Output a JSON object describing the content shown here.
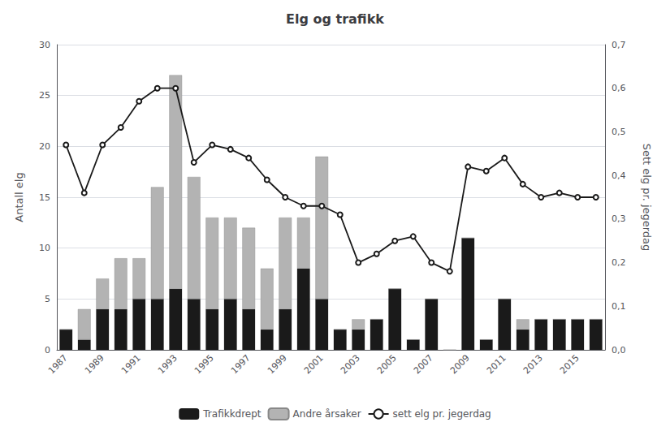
{
  "chart_data": {
    "type": "bar",
    "title": "Elg og trafikk",
    "ylabel": "Antall elg",
    "y2label": "Sett elg pr. jegerdag",
    "categories": [
      "1987",
      null,
      "1989",
      null,
      "1991",
      null,
      "1993",
      null,
      "1995",
      null,
      "1997",
      null,
      "1999",
      null,
      "2001",
      null,
      "2003",
      null,
      "2005",
      null,
      "2007",
      null,
      "2009",
      null,
      "2011",
      null,
      "2013",
      null,
      "2015",
      null
    ],
    "series": [
      {
        "name": "Trafikkdrept",
        "type": "bar",
        "color": "#1a1a1a",
        "values": [
          2,
          1,
          4,
          4,
          5,
          5,
          6,
          5,
          4,
          5,
          4,
          2,
          4,
          8,
          5,
          2,
          2,
          3,
          6,
          1,
          5,
          0,
          11,
          1,
          5,
          2,
          3,
          3,
          3,
          3
        ]
      },
      {
        "name": "Andre årsaker",
        "type": "bar",
        "color": "#b3b3b3",
        "values": [
          0,
          3,
          3,
          5,
          4,
          11,
          21,
          12,
          9,
          8,
          8,
          6,
          9,
          5,
          14,
          0,
          1,
          0,
          0,
          0,
          0,
          0,
          0,
          0,
          0,
          1,
          0,
          0,
          0,
          0
        ]
      },
      {
        "name": "sett elg pr. jegerdag",
        "type": "line",
        "axis": "y2",
        "color": "#1a1a1a",
        "marker": "circle",
        "values": [
          0.47,
          0.36,
          0.47,
          0.51,
          0.57,
          0.6,
          0.6,
          0.43,
          0.47,
          0.46,
          0.44,
          0.39,
          0.35,
          0.33,
          0.33,
          0.31,
          0.2,
          0.22,
          0.25,
          0.26,
          0.2,
          0.18,
          0.42,
          0.41,
          0.44,
          0.38,
          0.35,
          0.36,
          0.35,
          0.35
        ]
      }
    ],
    "stacked": true,
    "ylim": [
      0,
      30
    ],
    "yticks": [
      0,
      5,
      10,
      15,
      20,
      25,
      30
    ],
    "y2lim": [
      0,
      0.7
    ],
    "y2ticks": [
      {
        "value": 0.0,
        "label": "0,0"
      },
      {
        "value": 0.1,
        "label": "0,1"
      },
      {
        "value": 0.2,
        "label": "0,2"
      },
      {
        "value": 0.3,
        "label": "0,3"
      },
      {
        "value": 0.4,
        "label": "0,4"
      },
      {
        "value": 0.5,
        "label": "0,5"
      },
      {
        "value": 0.6,
        "label": "0,6"
      },
      {
        "value": 0.7,
        "label": "0,7"
      }
    ],
    "grid": true,
    "legend": "bottom"
  }
}
